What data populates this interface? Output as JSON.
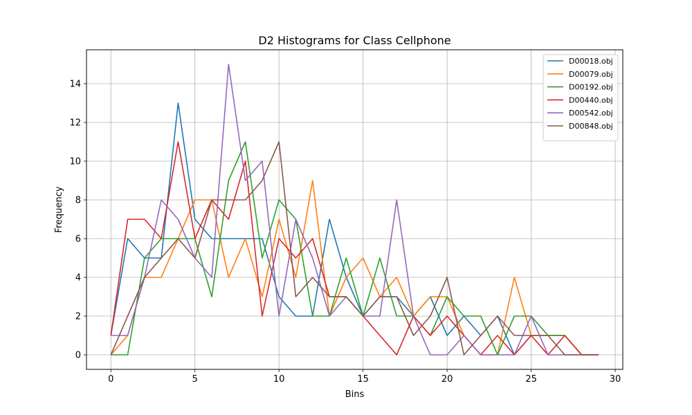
{
  "chart_data": {
    "type": "line",
    "title": "D2 Histograms for Class Cellphone",
    "xlabel": "Bins",
    "ylabel": "Frequency",
    "xlim": [
      -1.45,
      30.45
    ],
    "ylim": [
      -0.75,
      15.75
    ],
    "xticks": [
      0,
      5,
      10,
      15,
      20,
      25,
      30
    ],
    "yticks": [
      0,
      2,
      4,
      6,
      8,
      10,
      12,
      14
    ],
    "grid": true,
    "legend_position": "upper right",
    "x": [
      0,
      1,
      2,
      3,
      4,
      5,
      6,
      7,
      8,
      9,
      10,
      11,
      12,
      13,
      14,
      15,
      16,
      17,
      18,
      19,
      20,
      21,
      22,
      23,
      24,
      25,
      26,
      27,
      28,
      29
    ],
    "series": [
      {
        "name": "D00018.obj",
        "color": "#1f77b4",
        "values": [
          1,
          6,
          5,
          5,
          13,
          7,
          6,
          6,
          6,
          6,
          3,
          2,
          2,
          7,
          4,
          2,
          3,
          3,
          2,
          3,
          1,
          2,
          1,
          2,
          0,
          1,
          1,
          1,
          0,
          0
        ]
      },
      {
        "name": "D00079.obj",
        "color": "#ff7f0e",
        "values": [
          0,
          1,
          4,
          4,
          6,
          8,
          8,
          4,
          6,
          3,
          7,
          4,
          9,
          2,
          4,
          5,
          3,
          4,
          2,
          3,
          3,
          1,
          0,
          0,
          4,
          1,
          1,
          1,
          0,
          0
        ]
      },
      {
        "name": "D00192.obj",
        "color": "#2ca02c",
        "values": [
          0,
          0,
          5,
          6,
          6,
          6,
          3,
          9,
          11,
          5,
          8,
          7,
          2,
          2,
          5,
          2,
          5,
          2,
          2,
          1,
          3,
          2,
          2,
          0,
          2,
          2,
          1,
          1,
          0,
          0
        ]
      },
      {
        "name": "D00440.obj",
        "color": "#d62728",
        "values": [
          1,
          7,
          7,
          6,
          11,
          6,
          8,
          7,
          10,
          2,
          6,
          5,
          6,
          3,
          3,
          2,
          1,
          0,
          2,
          1,
          2,
          1,
          0,
          1,
          0,
          1,
          0,
          1,
          0,
          0
        ]
      },
      {
        "name": "D00542.obj",
        "color": "#9467bd",
        "values": [
          1,
          1,
          4,
          8,
          7,
          5,
          4,
          15,
          9,
          10,
          2,
          7,
          5,
          2,
          3,
          2,
          2,
          8,
          2,
          0,
          0,
          1,
          0,
          0,
          0,
          2,
          0,
          0,
          0,
          0
        ]
      },
      {
        "name": "D00848.obj",
        "color": "#8c564b",
        "values": [
          0,
          2,
          4,
          5,
          6,
          5,
          8,
          8,
          8,
          9,
          11,
          3,
          4,
          3,
          3,
          2,
          3,
          3,
          1,
          2,
          4,
          0,
          1,
          2,
          1,
          1,
          1,
          0,
          0,
          0
        ]
      }
    ]
  }
}
